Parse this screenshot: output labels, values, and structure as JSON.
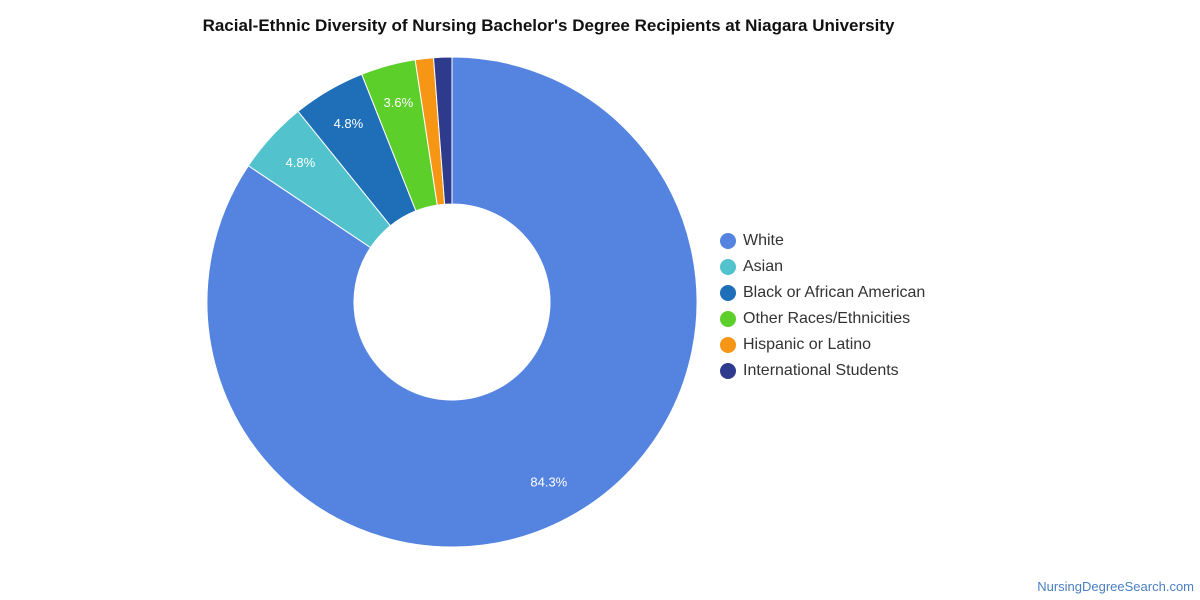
{
  "chart_data": {
    "type": "pie",
    "variant": "donut",
    "title": "Racial-Ethnic Diversity of Nursing Bachelor's Degree Recipients at Niagara University",
    "legend_position": "right",
    "categories": [
      "White",
      "Asian",
      "Black or African American",
      "Other Races/Ethnicities",
      "Hispanic or Latino",
      "International Students"
    ],
    "values": [
      84.3,
      4.8,
      4.8,
      3.6,
      1.2,
      1.2
    ],
    "data_labels": [
      "84.3%",
      "4.8%",
      "4.8%",
      "3.6%",
      "",
      ""
    ],
    "colors": [
      "#5484e0",
      "#52c3cd",
      "#1f6fb8",
      "#5dcf2b",
      "#f79514",
      "#2e3a8c"
    ]
  },
  "watermark": "NursingDegreeSearch.com"
}
